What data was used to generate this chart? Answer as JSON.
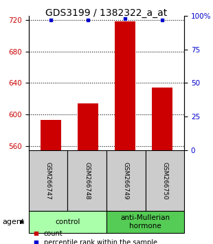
{
  "title": "GDS3199 / 1382322_a_at",
  "samples": [
    "GSM266747",
    "GSM266748",
    "GSM266749",
    "GSM266750"
  ],
  "counts": [
    593,
    614,
    718,
    634
  ],
  "percentiles": [
    97,
    97,
    98,
    97
  ],
  "ylim_left": [
    555,
    725
  ],
  "ylim_right": [
    0,
    100
  ],
  "yticks_left": [
    560,
    600,
    640,
    680,
    720
  ],
  "yticks_right": [
    0,
    25,
    50,
    75,
    100
  ],
  "bar_color": "#cc0000",
  "dot_color": "#0000cc",
  "bar_bottom": 555,
  "groups": [
    {
      "label": "control",
      "color": "#aaffaa",
      "span": [
        0,
        1
      ]
    },
    {
      "label": "anti-Mullerian\nhormone",
      "color": "#55cc55",
      "span": [
        2,
        3
      ]
    }
  ],
  "title_fontsize": 10,
  "tick_fontsize": 7.5,
  "sample_fontsize": 6.5,
  "group_fontsize": 7.5,
  "legend_fontsize": 7,
  "sample_label_bgcolor": "#cccccc",
  "bar_width": 0.55
}
